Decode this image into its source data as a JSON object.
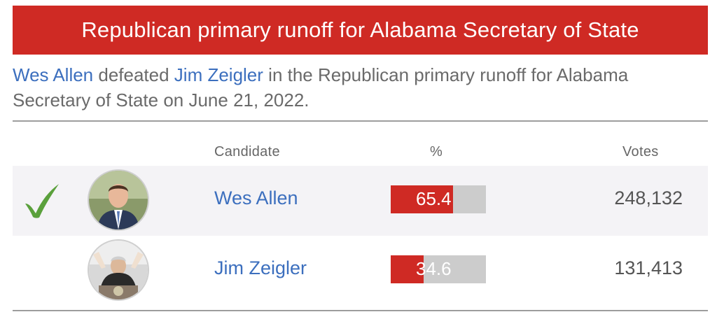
{
  "header": {
    "title": "Republican primary runoff for Alabama Secretary of State"
  },
  "summary": {
    "winner": "Wes Allen",
    "defeated_text": " defeated ",
    "loser": "Jim Zeigler",
    "rest_text": " in the Republican primary runoff for Alabama Secretary of State on June 21, 2022."
  },
  "table": {
    "headers": {
      "candidate": "Candidate",
      "percent": "%",
      "votes": "Votes"
    },
    "rows": [
      {
        "name": "Wes Allen",
        "percent": 65.4,
        "percent_label": "65.4",
        "votes": "248,132",
        "winner": true
      },
      {
        "name": "Jim Zeigler",
        "percent": 34.6,
        "percent_label": "34.6",
        "votes": "131,413",
        "winner": false
      }
    ]
  },
  "colors": {
    "accent_red": "#cf2a24",
    "link_blue": "#3c6fbe",
    "check_green": "#5aa03c",
    "bar_gray": "#cccccc"
  },
  "icons": {
    "winner_mark": "check-icon"
  }
}
